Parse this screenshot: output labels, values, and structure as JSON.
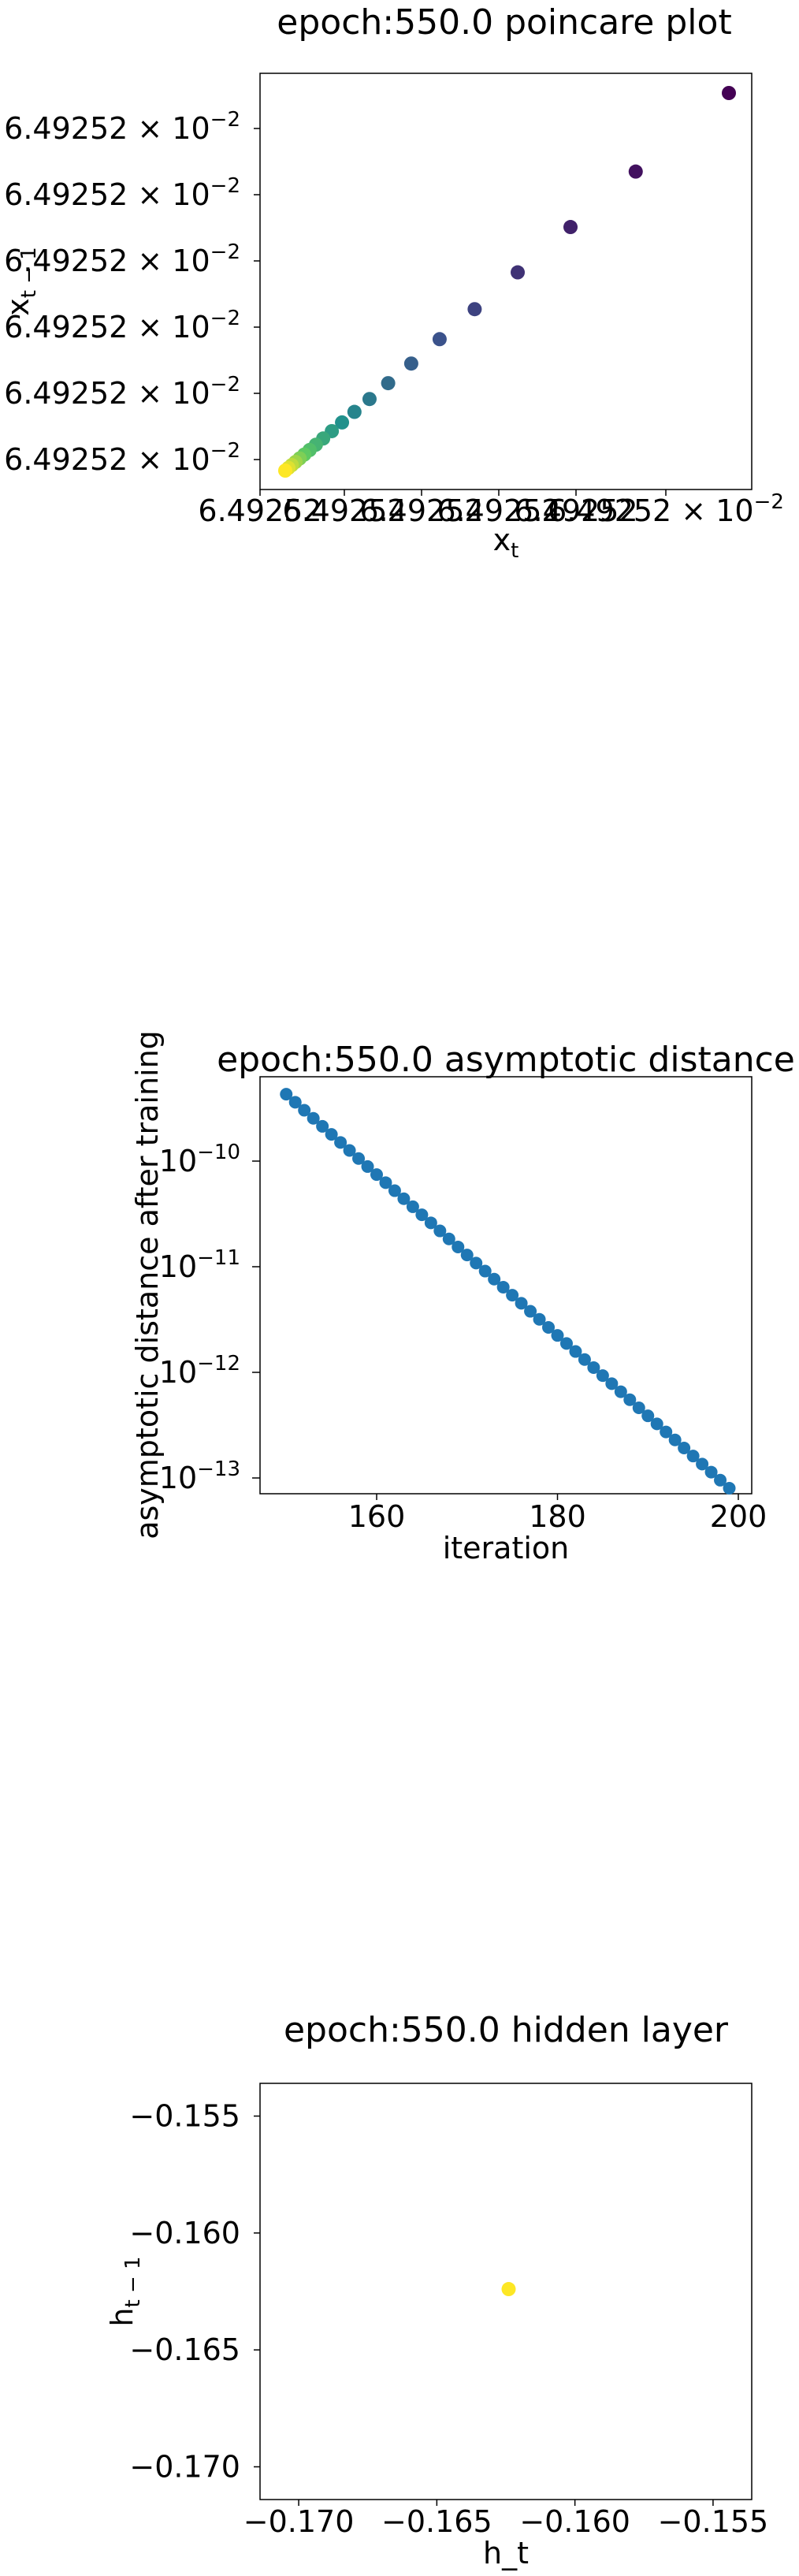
{
  "chart_data": [
    {
      "type": "scatter",
      "title": "epoch:550.0 poincare plot",
      "xlabel_base": "x",
      "xlabel_sub": "t",
      "ylabel_base": "x",
      "ylabel_sub": "t − 1",
      "x_tick_labels": [
        "6.49252",
        "6.49252",
        "6.49252",
        "6.49252",
        "6.49252",
        "6.49252 × 10",
        "−2"
      ],
      "y_tick_base": "6.49252 × 10",
      "y_tick_exp": "−2",
      "y_tick_count": 6,
      "colormap": "viridis",
      "points_norm_xy": [
        [
          0.0,
          0.0
        ],
        [
          0.0072,
          0.0071
        ],
        [
          0.0148,
          0.0146
        ],
        [
          0.0232,
          0.0229
        ],
        [
          0.0325,
          0.0321
        ],
        [
          0.043,
          0.0425
        ],
        [
          0.055,
          0.0545
        ],
        [
          0.069,
          0.0685
        ],
        [
          0.0855,
          0.085
        ],
        [
          0.105,
          0.1045
        ],
        [
          0.128,
          0.1275
        ],
        [
          0.156,
          0.1555
        ],
        [
          0.19,
          0.1895
        ],
        [
          0.232,
          0.2315
        ],
        [
          0.284,
          0.2835
        ],
        [
          0.348,
          0.348
        ],
        [
          0.427,
          0.4275
        ],
        [
          0.524,
          0.525
        ],
        [
          0.643,
          0.645
        ],
        [
          0.79,
          0.792
        ],
        [
          1.0,
          1.0
        ]
      ]
    },
    {
      "type": "scatter",
      "title": "epoch:550.0 asymptotic distance",
      "xlabel": "iteration",
      "ylabel": "asymptotic distance after training",
      "x_ticks": [
        "160",
        "180",
        "200"
      ],
      "y_ticks": [
        "10",
        "10",
        "10",
        "10"
      ],
      "y_tick_exps": [
        "−10",
        "−11",
        "−12",
        "−13"
      ],
      "y_scale": "log",
      "color": "#1f77b4",
      "x": [
        150,
        199
      ],
      "y_first": 4.3e-10,
      "y_last": 8e-14
    },
    {
      "type": "scatter",
      "title": "epoch:550.0 hidden layer",
      "xlabel": "h_t",
      "ylabel_base": "h",
      "ylabel_sub": "t − 1",
      "x_ticks": [
        "−0.170",
        "−0.165",
        "−0.160",
        "−0.155"
      ],
      "y_ticks": [
        "−0.155",
        "−0.160",
        "−0.165",
        "−0.170"
      ],
      "xlim": [
        -0.1714,
        -0.1536
      ],
      "ylim": [
        -0.1714,
        -0.1536
      ],
      "point": [
        -0.1624,
        -0.1624
      ],
      "point_color": "#fde725"
    }
  ]
}
